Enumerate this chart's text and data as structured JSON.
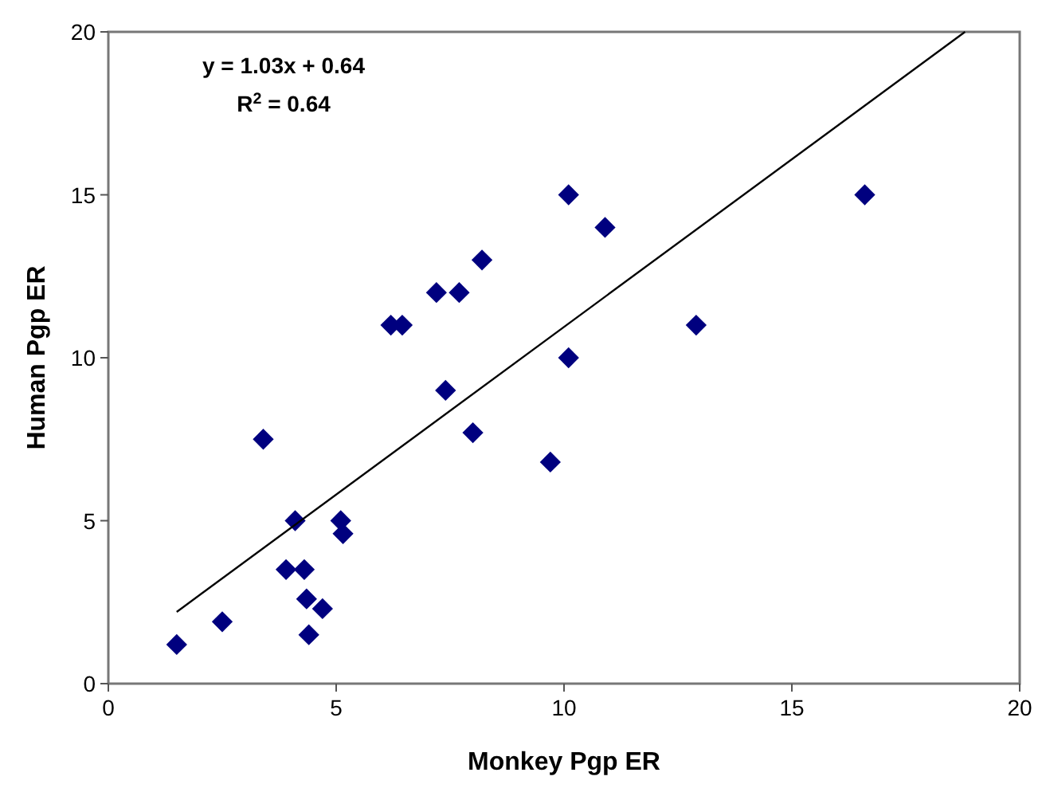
{
  "chart_data": {
    "type": "scatter",
    "xlabel": "Monkey Pgp ER",
    "ylabel": "Human Pgp ER",
    "xlim": [
      0,
      20
    ],
    "ylim": [
      0,
      20
    ],
    "xticks": [
      0,
      5,
      10,
      15,
      20
    ],
    "yticks": [
      0,
      5,
      10,
      15,
      20
    ],
    "grid": false,
    "marker": "diamond",
    "annotations": [
      "y = 1.03x + 0.64",
      "R$^{2}$ = 0.64"
    ],
    "series": [
      {
        "color": "#00007f",
        "x": [
          1.5,
          2.5,
          3.4,
          3.9,
          4.1,
          4.3,
          4.35,
          4.4,
          4.7,
          5.1,
          5.15,
          6.2,
          6.45,
          7.2,
          7.4,
          7.7,
          8.0,
          8.2,
          9.7,
          10.1,
          10.1,
          10.9,
          12.9,
          16.6
        ],
        "values": [
          1.2,
          1.9,
          7.5,
          3.5,
          5,
          3.5,
          2.6,
          1.5,
          2.3,
          5,
          4.6,
          11,
          11,
          12,
          9,
          12,
          7.7,
          13,
          6.8,
          15,
          10,
          14,
          11,
          15
        ]
      },
      {
        "type": "line",
        "color": "#000000",
        "marker": "none",
        "line_style": "solid",
        "x": [
          1.5,
          18.8
        ],
        "values": [
          2.2,
          20
        ]
      }
    ]
  }
}
